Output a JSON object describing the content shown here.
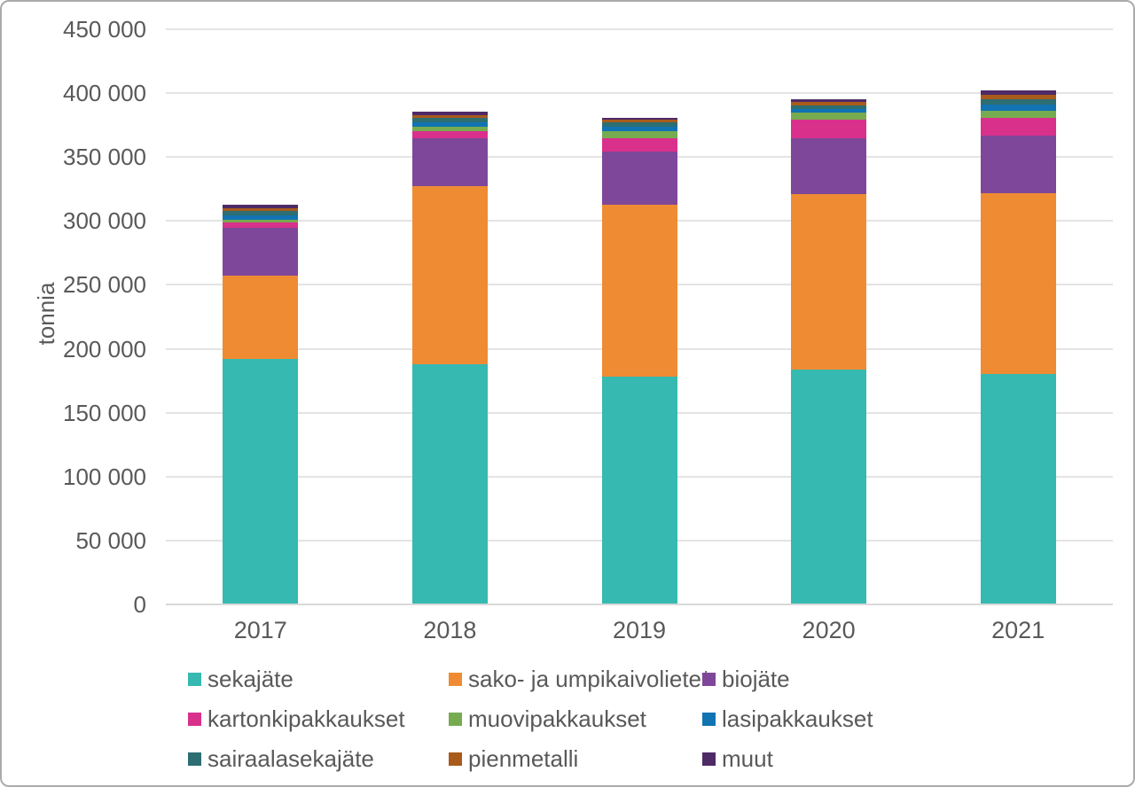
{
  "chart_data": {
    "type": "bar",
    "stacked": true,
    "title": "",
    "xlabel": "",
    "ylabel": "tonnia",
    "categories": [
      "2017",
      "2018",
      "2019",
      "2020",
      "2021"
    ],
    "series": [
      {
        "name": "sekajäte",
        "color": "#35b9b1",
        "values": [
          192000,
          188000,
          178000,
          184000,
          180000
        ]
      },
      {
        "name": "sako- ja umpikaivoliete*",
        "color": "#ef8b33",
        "values": [
          65000,
          139000,
          135000,
          137000,
          141500
        ]
      },
      {
        "name": "biojäte",
        "color": "#7e4799",
        "values": [
          37500,
          38000,
          41500,
          43500,
          45000
        ]
      },
      {
        "name": "kartonkipakkaukset",
        "color": "#d9308c",
        "values": [
          4500,
          5000,
          10000,
          14500,
          14000
        ]
      },
      {
        "name": "muovipakkaukset",
        "color": "#76ab50",
        "values": [
          2000,
          3500,
          6000,
          5500,
          5500
        ]
      },
      {
        "name": "lasipakkaukset",
        "color": "#1173b2",
        "values": [
          3500,
          4000,
          3500,
          3000,
          5000
        ]
      },
      {
        "name": "sairaalasekajäte",
        "color": "#2d6e72",
        "values": [
          3500,
          3000,
          3000,
          3000,
          4500
        ]
      },
      {
        "name": "pienmetalli",
        "color": "#a85b1b",
        "values": [
          2000,
          2500,
          2000,
          2500,
          3500
        ]
      },
      {
        "name": "muut",
        "color": "#4e2a67",
        "values": [
          3000,
          2500,
          1500,
          2000,
          3000
        ]
      }
    ],
    "ylim": [
      0,
      450000
    ],
    "ytick_step": 50000,
    "yticks": [
      {
        "value": 0,
        "label": "0"
      },
      {
        "value": 50000,
        "label": "50 000"
      },
      {
        "value": 100000,
        "label": "100 000"
      },
      {
        "value": 150000,
        "label": "150 000"
      },
      {
        "value": 200000,
        "label": "200 000"
      },
      {
        "value": 250000,
        "label": "250 000"
      },
      {
        "value": 300000,
        "label": "300 000"
      },
      {
        "value": 350000,
        "label": "350 000"
      },
      {
        "value": 400000,
        "label": "400 000"
      },
      {
        "value": 450000,
        "label": "450 000"
      }
    ],
    "grid": true,
    "legend_position": "bottom",
    "legend_grid": [
      [
        "sekajäte",
        "sako- ja umpikaivoliete*",
        "biojäte"
      ],
      [
        "kartonkipakkaukset",
        "muovipakkaukset",
        "lasipakkaukset"
      ],
      [
        "sairaalasekajäte",
        "pienmetalli",
        "muut"
      ]
    ]
  },
  "colors": {
    "text": "#595959",
    "gridline": "#e4e4e4",
    "axis_line": "#d9d9d9",
    "frame_border": "#ababab",
    "background": "#ffffff"
  }
}
